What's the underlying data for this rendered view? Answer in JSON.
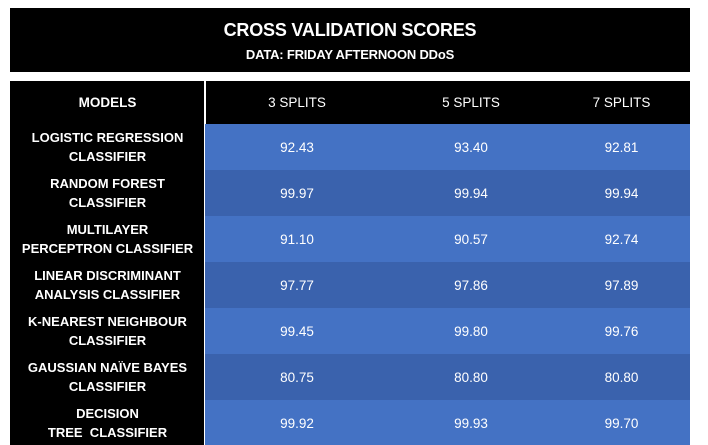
{
  "header": {
    "title": "CROSS VALIDATION SCORES",
    "subtitle": "DATA: FRIDAY AFTERNOON DDoS"
  },
  "columns": {
    "models": "MODELS",
    "split3": "3 SPLITS",
    "split5": "5 SPLITS",
    "split7": "7 SPLITS"
  },
  "rows": [
    {
      "model_line1": "LOGISTIC REGRESSION",
      "model_line2": "CLASSIFIER",
      "s3": "92.43",
      "s5": "93.40",
      "s7": "92.81"
    },
    {
      "model_line1": "RANDOM FOREST",
      "model_line2": "CLASSIFIER",
      "s3": "99.97",
      "s5": "99.94",
      "s7": "99.94"
    },
    {
      "model_line1": "MULTILAYER",
      "model_line2": "PERCEPTRON CLASSIFIER",
      "s3": "91.10",
      "s5": "90.57",
      "s7": "92.74"
    },
    {
      "model_line1": "LINEAR DISCRIMINANT",
      "model_line2": "ANALYSIS CLASSIFIER",
      "s3": "97.77",
      "s5": "97.86",
      "s7": "97.89"
    },
    {
      "model_line1": "K-NEAREST NEIGHBOUR",
      "model_line2": "CLASSIFIER",
      "s3": "99.45",
      "s5": "99.80",
      "s7": "99.76"
    },
    {
      "model_line1": "GAUSSIAN NAÏVE BAYES",
      "model_line2": "CLASSIFIER",
      "s3": "80.75",
      "s5": "80.80",
      "s7": "80.80"
    },
    {
      "model_line1": "DECISION",
      "model_line2": "TREE  CLASSIFIER",
      "s3": "99.92",
      "s5": "99.93",
      "s7": "99.70"
    }
  ],
  "colors": {
    "header_bg": "#000000",
    "row_light": "#4472c4",
    "row_dark": "#3a62ad",
    "text": "#ffffff"
  }
}
